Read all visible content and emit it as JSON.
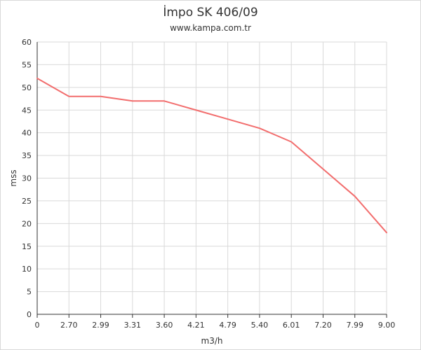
{
  "chart_data": {
    "type": "line",
    "title": "İmpo SK 406/09",
    "subtitle": "www.kampa.com.tr",
    "xlabel": "m3/h",
    "ylabel": "mss",
    "categories": [
      "0",
      "2.70",
      "2.99",
      "3.31",
      "3.60",
      "4.21",
      "4.79",
      "5.40",
      "6.01",
      "7.20",
      "7.99",
      "9.00"
    ],
    "series": [
      {
        "values": [
          52,
          48,
          48,
          47,
          47,
          45,
          43,
          41,
          38,
          32,
          26,
          18
        ]
      }
    ],
    "ylim": [
      0,
      60
    ],
    "yticks": [
      0,
      5,
      10,
      15,
      20,
      25,
      30,
      35,
      40,
      45,
      50,
      55,
      60
    ],
    "grid": true,
    "line_color": "#f26d6d",
    "grid_color": "#d9d9d9",
    "axis_color": "#333333"
  }
}
